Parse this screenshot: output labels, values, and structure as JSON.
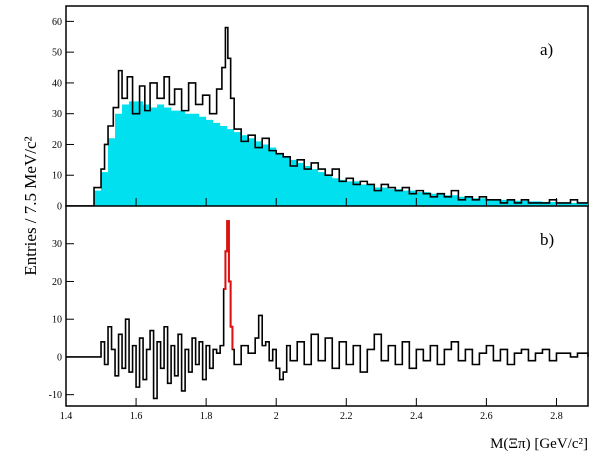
{
  "chart_data": [
    {
      "panel_label": "a)",
      "type": "histogram",
      "xlabel": "M(Ξπ) [GeV/c²]",
      "ylabel": "Entries / 7.5 MeV/c²",
      "xlim": [
        1.4,
        2.89
      ],
      "ylim": [
        0,
        65
      ],
      "yticks": [
        0,
        10,
        20,
        30,
        40,
        50,
        60
      ],
      "bin_width": 0.0075,
      "points": [
        [
          1.4,
          0
        ],
        [
          1.465,
          0
        ],
        [
          1.48,
          6
        ],
        [
          1.5,
          12
        ],
        [
          1.51,
          20
        ],
        [
          1.52,
          26
        ],
        [
          1.535,
          32
        ],
        [
          1.55,
          44
        ],
        [
          1.56,
          35
        ],
        [
          1.575,
          42
        ],
        [
          1.59,
          30
        ],
        [
          1.61,
          39
        ],
        [
          1.625,
          31
        ],
        [
          1.64,
          40
        ],
        [
          1.66,
          35
        ],
        [
          1.68,
          42
        ],
        [
          1.695,
          33
        ],
        [
          1.71,
          38
        ],
        [
          1.73,
          31
        ],
        [
          1.75,
          40
        ],
        [
          1.77,
          33
        ],
        [
          1.79,
          36
        ],
        [
          1.81,
          30
        ],
        [
          1.83,
          38
        ],
        [
          1.845,
          45
        ],
        [
          1.855,
          58
        ],
        [
          1.862,
          48
        ],
        [
          1.87,
          35
        ],
        [
          1.88,
          25
        ],
        [
          1.9,
          21
        ],
        [
          1.92,
          23
        ],
        [
          1.94,
          19
        ],
        [
          1.96,
          22
        ],
        [
          1.98,
          18
        ],
        [
          2.0,
          17
        ],
        [
          2.02,
          16
        ],
        [
          2.04,
          13
        ],
        [
          2.06,
          15
        ],
        [
          2.08,
          12
        ],
        [
          2.1,
          14
        ],
        [
          2.12,
          12
        ],
        [
          2.14,
          10
        ],
        [
          2.16,
          12
        ],
        [
          2.18,
          8
        ],
        [
          2.2,
          9
        ],
        [
          2.22,
          7
        ],
        [
          2.24,
          8
        ],
        [
          2.26,
          7
        ],
        [
          2.28,
          5
        ],
        [
          2.3,
          7
        ],
        [
          2.32,
          6
        ],
        [
          2.34,
          5
        ],
        [
          2.36,
          6
        ],
        [
          2.38,
          4
        ],
        [
          2.4,
          5
        ],
        [
          2.42,
          4
        ],
        [
          2.44,
          3
        ],
        [
          2.46,
          4
        ],
        [
          2.48,
          3
        ],
        [
          2.5,
          5
        ],
        [
          2.52,
          2
        ],
        [
          2.54,
          3
        ],
        [
          2.56,
          2
        ],
        [
          2.58,
          3
        ],
        [
          2.6,
          2
        ],
        [
          2.62,
          2
        ],
        [
          2.64,
          1
        ],
        [
          2.66,
          2
        ],
        [
          2.68,
          1
        ],
        [
          2.7,
          2
        ],
        [
          2.72,
          1
        ],
        [
          2.74,
          1
        ],
        [
          2.76,
          1
        ],
        [
          2.78,
          2
        ],
        [
          2.8,
          1
        ],
        [
          2.82,
          1
        ],
        [
          2.84,
          2
        ],
        [
          2.86,
          1
        ],
        [
          2.89,
          1
        ]
      ],
      "background_points": [
        [
          1.4,
          0
        ],
        [
          1.465,
          0
        ],
        [
          1.48,
          5
        ],
        [
          1.5,
          11
        ],
        [
          1.52,
          22
        ],
        [
          1.54,
          30
        ],
        [
          1.56,
          33
        ],
        [
          1.58,
          34
        ],
        [
          1.6,
          34
        ],
        [
          1.62,
          33
        ],
        [
          1.64,
          32
        ],
        [
          1.66,
          33
        ],
        [
          1.68,
          32
        ],
        [
          1.7,
          31
        ],
        [
          1.72,
          31
        ],
        [
          1.74,
          30
        ],
        [
          1.76,
          30
        ],
        [
          1.78,
          29
        ],
        [
          1.8,
          28
        ],
        [
          1.82,
          27
        ],
        [
          1.84,
          26
        ],
        [
          1.86,
          25
        ],
        [
          1.88,
          24
        ],
        [
          1.9,
          23
        ],
        [
          1.92,
          22
        ],
        [
          1.94,
          21
        ],
        [
          1.96,
          20
        ],
        [
          1.98,
          19
        ],
        [
          2.0,
          17
        ],
        [
          2.02,
          16
        ],
        [
          2.04,
          15
        ],
        [
          2.06,
          14
        ],
        [
          2.08,
          13
        ],
        [
          2.1,
          12
        ],
        [
          2.12,
          11
        ],
        [
          2.14,
          10
        ],
        [
          2.16,
          9
        ],
        [
          2.18,
          8.5
        ],
        [
          2.2,
          8
        ],
        [
          2.24,
          7
        ],
        [
          2.28,
          6
        ],
        [
          2.32,
          5.5
        ],
        [
          2.36,
          5
        ],
        [
          2.4,
          4.5
        ],
        [
          2.44,
          4
        ],
        [
          2.48,
          3.5
        ],
        [
          2.52,
          3
        ],
        [
          2.56,
          2.5
        ],
        [
          2.6,
          2.2
        ],
        [
          2.64,
          2
        ],
        [
          2.68,
          1.7
        ],
        [
          2.72,
          1.5
        ],
        [
          2.76,
          1.3
        ],
        [
          2.8,
          1.1
        ],
        [
          2.84,
          1
        ],
        [
          2.89,
          0.9
        ]
      ],
      "colors": {
        "background_fill": "#00e0ee",
        "line": "#000000"
      }
    },
    {
      "panel_label": "b)",
      "type": "histogram",
      "xlim": [
        1.4,
        2.89
      ],
      "ylim": [
        -13,
        40
      ],
      "yticks": [
        -10,
        0,
        10,
        20,
        30
      ],
      "xticks": [
        1.4,
        1.6,
        1.8,
        2.0,
        2.2,
        2.4,
        2.6,
        2.8
      ],
      "xtick_labels": [
        "1.4",
        "1.6",
        "1.8",
        "2",
        "2.2",
        "2.4",
        "2.6",
        "2.8"
      ],
      "points": [
        [
          1.4,
          0
        ],
        [
          1.49,
          0
        ],
        [
          1.5,
          4
        ],
        [
          1.51,
          -2
        ],
        [
          1.52,
          8
        ],
        [
          1.53,
          2
        ],
        [
          1.54,
          -5
        ],
        [
          1.55,
          6
        ],
        [
          1.56,
          -3
        ],
        [
          1.57,
          10
        ],
        [
          1.58,
          -4
        ],
        [
          1.59,
          3
        ],
        [
          1.6,
          -8
        ],
        [
          1.61,
          5
        ],
        [
          1.62,
          -6
        ],
        [
          1.63,
          2
        ],
        [
          1.64,
          7
        ],
        [
          1.65,
          -11
        ],
        [
          1.66,
          4
        ],
        [
          1.67,
          -3
        ],
        [
          1.68,
          8
        ],
        [
          1.69,
          -7
        ],
        [
          1.7,
          3
        ],
        [
          1.71,
          -5
        ],
        [
          1.72,
          6
        ],
        [
          1.73,
          -9
        ],
        [
          1.74,
          2
        ],
        [
          1.75,
          -4
        ],
        [
          1.76,
          5
        ],
        [
          1.77,
          -2
        ],
        [
          1.78,
          4
        ],
        [
          1.79,
          -6
        ],
        [
          1.8,
          3
        ],
        [
          1.81,
          -3
        ],
        [
          1.82,
          2
        ],
        [
          1.83,
          1
        ],
        [
          1.84,
          3
        ],
        [
          1.85,
          18
        ],
        [
          1.855,
          28
        ],
        [
          1.86,
          36
        ],
        [
          1.865,
          20
        ],
        [
          1.87,
          8
        ],
        [
          1.875,
          2
        ],
        [
          1.88,
          -2
        ],
        [
          1.9,
          3
        ],
        [
          1.92,
          1
        ],
        [
          1.94,
          5
        ],
        [
          1.95,
          11
        ],
        [
          1.96,
          3
        ],
        [
          1.97,
          4
        ],
        [
          1.98,
          -1
        ],
        [
          1.99,
          2
        ],
        [
          2.0,
          -3
        ],
        [
          2.01,
          -6
        ],
        [
          2.02,
          -4
        ],
        [
          2.03,
          3
        ],
        [
          2.04,
          -1
        ],
        [
          2.06,
          4
        ],
        [
          2.08,
          -2
        ],
        [
          2.1,
          6
        ],
        [
          2.12,
          -1
        ],
        [
          2.14,
          5
        ],
        [
          2.16,
          -3
        ],
        [
          2.18,
          4
        ],
        [
          2.2,
          -2
        ],
        [
          2.22,
          3
        ],
        [
          2.24,
          -4
        ],
        [
          2.26,
          2
        ],
        [
          2.28,
          6
        ],
        [
          2.3,
          -1
        ],
        [
          2.32,
          3
        ],
        [
          2.34,
          -2
        ],
        [
          2.36,
          4
        ],
        [
          2.38,
          -3
        ],
        [
          2.4,
          2
        ],
        [
          2.42,
          -1
        ],
        [
          2.44,
          3
        ],
        [
          2.46,
          -2
        ],
        [
          2.48,
          2
        ],
        [
          2.5,
          4
        ],
        [
          2.52,
          -1
        ],
        [
          2.54,
          2
        ],
        [
          2.56,
          -2
        ],
        [
          2.58,
          1
        ],
        [
          2.6,
          3
        ],
        [
          2.62,
          -1
        ],
        [
          2.64,
          2
        ],
        [
          2.66,
          -2
        ],
        [
          2.68,
          1
        ],
        [
          2.7,
          2
        ],
        [
          2.72,
          -1
        ],
        [
          2.74,
          1
        ],
        [
          2.76,
          2
        ],
        [
          2.78,
          -1
        ],
        [
          2.8,
          1
        ],
        [
          2.82,
          1
        ],
        [
          2.84,
          0
        ],
        [
          2.86,
          1
        ],
        [
          2.89,
          0
        ]
      ],
      "signal_range": [
        1.845,
        1.875
      ],
      "colors": {
        "signal": "#e01010",
        "line": "#000000"
      }
    }
  ]
}
